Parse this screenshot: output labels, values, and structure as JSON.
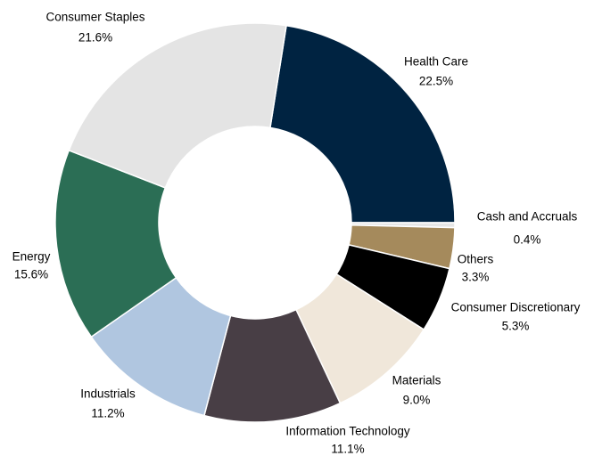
{
  "chart_data": {
    "type": "donut",
    "categories": [
      "Health Care",
      "Cash and Accruals",
      "Others",
      "Consumer Discretionary",
      "Materials",
      "Information Technology",
      "Industrials",
      "Energy",
      "Consumer Staples"
    ],
    "values": [
      22.5,
      0.4,
      3.3,
      5.3,
      9.0,
      11.1,
      11.2,
      15.6,
      21.6
    ],
    "value_labels": [
      "22.5%",
      "0.4%",
      "3.3%",
      "5.3%",
      "9.0%",
      "11.1%",
      "11.2%",
      "15.6%",
      "21.6%"
    ],
    "colors": [
      "#002341",
      "#e6e6e6",
      "#a58a5c",
      "#000000",
      "#f0e7da",
      "#483e45",
      "#b0c6e0",
      "#2b6e55",
      "#e4e4e4"
    ]
  }
}
